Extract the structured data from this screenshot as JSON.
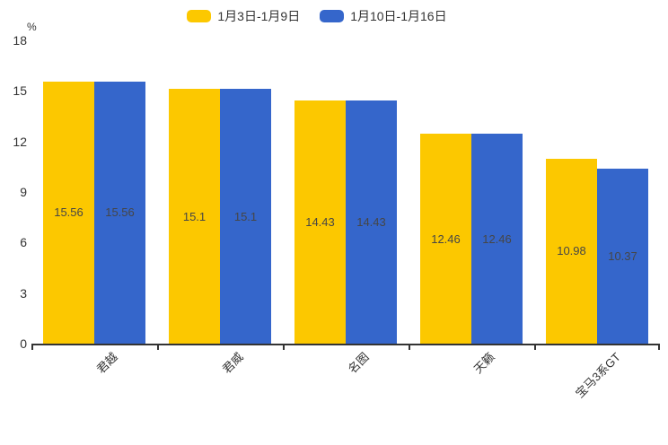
{
  "chart_data": {
    "type": "bar",
    "title": "",
    "xlabel": "",
    "ylabel": "%",
    "ylim": [
      0,
      18
    ],
    "ytick_step": 3,
    "grid": false,
    "legend_position": "top",
    "value_labels": "inside-center",
    "categories": [
      "君越",
      "君威",
      "名图",
      "天籁",
      "宝马3系GT"
    ],
    "series": [
      {
        "name": "1月3日-1月9日",
        "color": "#FCC800",
        "values": [
          15.56,
          15.1,
          14.43,
          12.46,
          10.98
        ]
      },
      {
        "name": "1月10日-1月16日",
        "color": "#3566CB",
        "values": [
          15.56,
          15.1,
          14.43,
          12.46,
          10.37
        ]
      }
    ],
    "colors": {
      "axis": "#333333",
      "value_label_text": "#464646",
      "background": "#ffffff"
    }
  }
}
